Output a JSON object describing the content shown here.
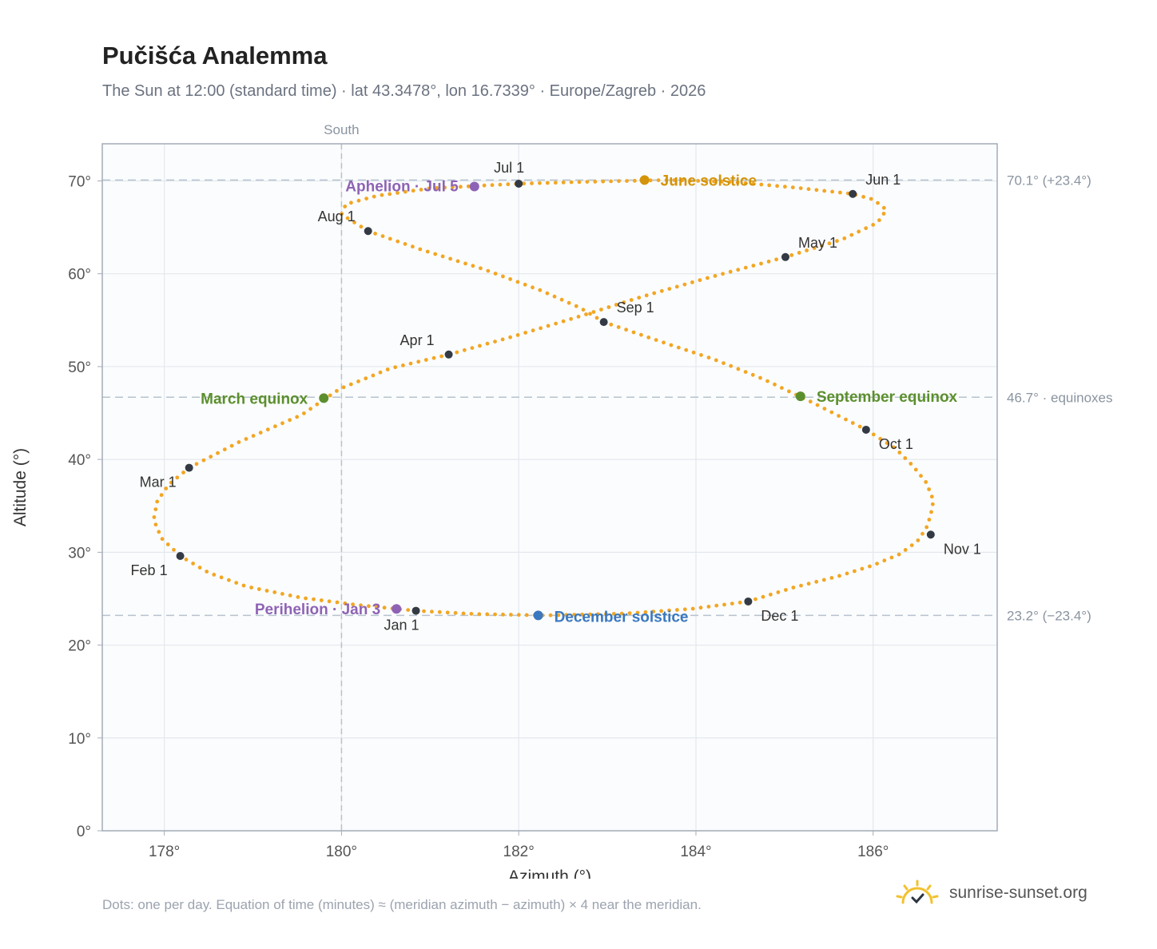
{
  "header": {
    "title": "Pučišća Analemma",
    "subtitle": "The Sun at 12:00 (standard time) · lat 43.3478°, lon 16.7339° · Europe/Zagreb · 2026"
  },
  "footer": {
    "note": "Dots: one per day. Equation of time (minutes) ≈ (meridian azimuth − azimuth) × 4 near the meridian.",
    "brand": "sunrise-sunset.org",
    "brand_icon": "sun-logo-icon"
  },
  "colors": {
    "curve": "#f2a623",
    "month_dot": "#333a44",
    "aphelion": "#8e63b5",
    "perihelion": "#8e63b5",
    "june_solstice": "#d4940a",
    "december_solstice": "#3a78bf",
    "equinox": "#5b8f2e",
    "plot_bg": "#fbfcfd",
    "grid": "#e3e8ee",
    "axis": "#a3acb8",
    "guide": "#b7c3ce"
  },
  "chart_data": {
    "type": "scatter",
    "xlabel": "Azimuth (°)",
    "ylabel": "Altitude (°)",
    "xlim": [
      177.3,
      187.4
    ],
    "ylim": [
      0,
      74
    ],
    "x_ticks": [
      178,
      180,
      182,
      184,
      186
    ],
    "x_tick_labels": [
      "178°",
      "180°",
      "182°",
      "184°",
      "186°"
    ],
    "y_ticks": [
      0,
      10,
      20,
      30,
      40,
      50,
      60,
      70
    ],
    "y_tick_labels": [
      "0°",
      "10°",
      "20°",
      "30°",
      "40°",
      "50°",
      "60°",
      "70°"
    ],
    "grid": true,
    "south_line": {
      "azimuth": 180,
      "label": "South"
    },
    "reference_lines": [
      {
        "altitude": 70.1,
        "label": "70.1° (+23.4°)"
      },
      {
        "altitude": 46.7,
        "label": "46.7° · equinoxes"
      },
      {
        "altitude": 23.2,
        "label": "23.2° (−23.4°)"
      }
    ],
    "daily_path": [
      [
        180.84,
        23.7
      ],
      [
        180.2,
        24.3
      ],
      [
        179.55,
        25.1
      ],
      [
        178.93,
        26.3
      ],
      [
        178.5,
        27.8
      ],
      [
        178.18,
        29.6
      ],
      [
        177.97,
        31.5
      ],
      [
        177.88,
        33.5
      ],
      [
        177.92,
        35.5
      ],
      [
        178.05,
        37.3
      ],
      [
        178.28,
        39.1
      ],
      [
        178.85,
        41.9
      ],
      [
        179.55,
        44.8
      ],
      [
        179.98,
        47.6
      ],
      [
        180.55,
        49.8
      ],
      [
        181.21,
        51.3
      ],
      [
        181.92,
        53.2
      ],
      [
        182.65,
        55.3
      ],
      [
        183.38,
        57.5
      ],
      [
        184.15,
        59.6
      ],
      [
        185.01,
        61.8
      ],
      [
        185.65,
        63.7
      ],
      [
        186.05,
        65.5
      ],
      [
        186.15,
        66.9
      ],
      [
        186.0,
        68.0
      ],
      [
        185.77,
        68.6
      ],
      [
        185.1,
        69.3
      ],
      [
        184.4,
        69.9
      ],
      [
        183.7,
        70.1
      ],
      [
        182.75,
        69.9
      ],
      [
        182.0,
        69.7
      ],
      [
        181.0,
        69.2
      ],
      [
        180.4,
        68.4
      ],
      [
        180.05,
        67.5
      ],
      [
        180.0,
        66.4
      ],
      [
        180.3,
        64.6
      ],
      [
        180.9,
        62.6
      ],
      [
        181.6,
        60.5
      ],
      [
        182.25,
        58.2
      ],
      [
        182.7,
        56.3
      ],
      [
        182.96,
        54.8
      ],
      [
        183.6,
        52.7
      ],
      [
        184.2,
        50.8
      ],
      [
        184.75,
        48.7
      ],
      [
        185.3,
        46.2
      ],
      [
        185.92,
        43.2
      ],
      [
        186.25,
        41.2
      ],
      [
        186.45,
        39.3
      ],
      [
        186.6,
        37.5
      ],
      [
        186.68,
        35.6
      ],
      [
        186.65,
        34.0
      ],
      [
        186.6,
        32.6
      ],
      [
        186.5,
        31.2
      ],
      [
        186.3,
        29.8
      ],
      [
        186.0,
        28.6
      ],
      [
        185.6,
        27.4
      ],
      [
        185.1,
        26.2
      ],
      [
        184.59,
        24.7
      ],
      [
        183.95,
        23.9
      ],
      [
        183.2,
        23.4
      ],
      [
        182.3,
        23.2
      ],
      [
        181.5,
        23.35
      ],
      [
        180.84,
        23.7
      ]
    ],
    "months": [
      {
        "label": "Jan 1",
        "azimuth": 180.84,
        "altitude": 23.7
      },
      {
        "label": "Feb 1",
        "azimuth": 178.18,
        "altitude": 29.6
      },
      {
        "label": "Mar 1",
        "azimuth": 178.28,
        "altitude": 39.1
      },
      {
        "label": "Apr 1",
        "azimuth": 181.21,
        "altitude": 51.3
      },
      {
        "label": "May 1",
        "azimuth": 185.01,
        "altitude": 61.8
      },
      {
        "label": "Jun 1",
        "azimuth": 185.77,
        "altitude": 68.6
      },
      {
        "label": "Jul 1",
        "azimuth": 182.0,
        "altitude": 69.7
      },
      {
        "label": "Aug 1",
        "azimuth": 180.3,
        "altitude": 64.6
      },
      {
        "label": "Sep 1",
        "azimuth": 182.96,
        "altitude": 54.8
      },
      {
        "label": "Oct 1",
        "azimuth": 185.92,
        "altitude": 43.2
      },
      {
        "label": "Nov 1",
        "azimuth": 186.65,
        "altitude": 31.9
      },
      {
        "label": "Dec 1",
        "azimuth": 184.59,
        "altitude": 24.7
      }
    ],
    "events": [
      {
        "label": "Aphelion · Jul 5",
        "azimuth": 181.5,
        "altitude": 69.4,
        "kind": "aphelion"
      },
      {
        "label": "June solstice",
        "azimuth": 183.42,
        "altitude": 70.1,
        "kind": "june_solstice"
      },
      {
        "label": "March equinox",
        "azimuth": 179.8,
        "altitude": 46.6,
        "kind": "equinox"
      },
      {
        "label": "September equinox",
        "azimuth": 185.18,
        "altitude": 46.8,
        "kind": "equinox"
      },
      {
        "label": "Perihelion · Jan 3",
        "azimuth": 180.62,
        "altitude": 23.9,
        "kind": "perihelion"
      },
      {
        "label": "December solstice",
        "azimuth": 182.22,
        "altitude": 23.2,
        "kind": "december_solstice"
      }
    ]
  }
}
